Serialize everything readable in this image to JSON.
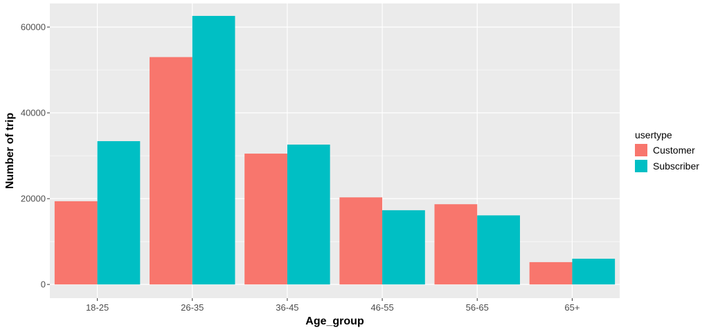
{
  "chart_data": {
    "type": "bar",
    "xlabel": "Age_group",
    "ylabel": "Number of trip",
    "categories": [
      "18-25",
      "26-35",
      "36-45",
      "46-55",
      "56-65",
      "65+"
    ],
    "series": [
      {
        "name": "Customer",
        "color": "#F8766D",
        "values": [
          19400,
          53000,
          30500,
          20300,
          18700,
          5200
        ]
      },
      {
        "name": "Subscriber",
        "color": "#00BFC4",
        "values": [
          33400,
          62600,
          32600,
          17300,
          16100,
          6000
        ]
      }
    ],
    "ylim": [
      -3200,
      65500
    ],
    "yticks": [
      0,
      20000,
      40000,
      60000
    ],
    "ytick_labels": [
      "0",
      "20000",
      "40000",
      "60000"
    ],
    "grid": true,
    "panel_background": "#EBEBEB",
    "legend": {
      "title": "usertype",
      "placement": "right"
    }
  }
}
